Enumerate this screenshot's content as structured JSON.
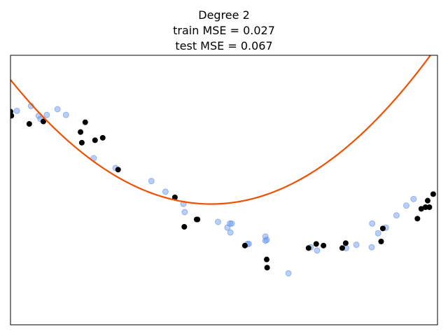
{
  "chart_data": {
    "type": "scatter",
    "title_lines": [
      "Degree 2",
      "train MSE = 0.027",
      "test MSE = 0.067"
    ],
    "xlim": [
      0,
      1
    ],
    "ylim": [
      -1.2,
      0.45
    ],
    "axis_ticks": "none",
    "grid": false,
    "series": [
      {
        "kind": "scatter",
        "color": "#6495ed",
        "opacity": 0.45,
        "points": [
          [
            0.048,
            0.14
          ],
          [
            0.066,
            0.08
          ],
          [
            0.085,
            0.085
          ],
          [
            0.11,
            0.12
          ],
          [
            0.13,
            0.085
          ],
          [
            0.246,
            -0.24
          ],
          [
            0.33,
            -0.32
          ],
          [
            0.363,
            -0.385
          ],
          [
            0.405,
            -0.46
          ],
          [
            0.408,
            -0.51
          ],
          [
            0.486,
            -0.57
          ],
          [
            0.514,
            -0.58
          ],
          [
            0.515,
            -0.635
          ],
          [
            0.508,
            -0.605
          ],
          [
            0.518,
            -0.58
          ],
          [
            0.555,
            -0.705
          ],
          [
            0.558,
            -0.705
          ],
          [
            0.6,
            -0.68
          ],
          [
            0.597,
            -0.66
          ],
          [
            0.597,
            -0.685
          ],
          [
            0.651,
            -0.885
          ],
          [
            0.718,
            -0.745
          ],
          [
            0.703,
            -0.725
          ],
          [
            0.786,
            -0.73
          ],
          [
            0.81,
            -0.71
          ],
          [
            0.847,
            -0.58
          ],
          [
            0.846,
            -0.725
          ],
          [
            0.861,
            -0.64
          ],
          [
            0.879,
            -0.605
          ],
          [
            0.904,
            -0.53
          ],
          [
            0.927,
            -0.47
          ],
          [
            0.944,
            -0.43
          ],
          [
            0.015,
            0.11
          ],
          [
            0.07,
            0.06
          ],
          [
            0.195,
            -0.18
          ]
        ]
      },
      {
        "kind": "scatter",
        "color": "#000000",
        "opacity": 1,
        "points": [
          [
            0.0,
            0.105
          ],
          [
            0.002,
            0.08
          ],
          [
            0.044,
            0.03
          ],
          [
            0.077,
            0.045
          ],
          [
            0.164,
            -0.02
          ],
          [
            0.167,
            -0.085
          ],
          [
            0.175,
            0.04
          ],
          [
            0.198,
            -0.07
          ],
          [
            0.216,
            -0.055
          ],
          [
            0.252,
            -0.25
          ],
          [
            0.385,
            -0.42
          ],
          [
            0.407,
            -0.6
          ],
          [
            0.438,
            -0.555
          ],
          [
            0.436,
            -0.555
          ],
          [
            0.549,
            -0.715
          ],
          [
            0.6,
            -0.8
          ],
          [
            0.601,
            -0.85
          ],
          [
            0.698,
            -0.73
          ],
          [
            0.716,
            -0.705
          ],
          [
            0.733,
            -0.715
          ],
          [
            0.777,
            -0.73
          ],
          [
            0.785,
            -0.7
          ],
          [
            0.868,
            -0.69
          ],
          [
            0.872,
            -0.61
          ],
          [
            0.953,
            -0.55
          ],
          [
            0.962,
            -0.49
          ],
          [
            0.972,
            -0.48
          ],
          [
            0.977,
            -0.44
          ],
          [
            0.981,
            -0.48
          ],
          [
            0.99,
            -0.4
          ]
        ]
      },
      {
        "kind": "line",
        "color": "#f05000",
        "opacity": 1,
        "fit_coefficients": [
          0.3,
          -3.24,
          3.45
        ],
        "samples": 200
      }
    ]
  }
}
